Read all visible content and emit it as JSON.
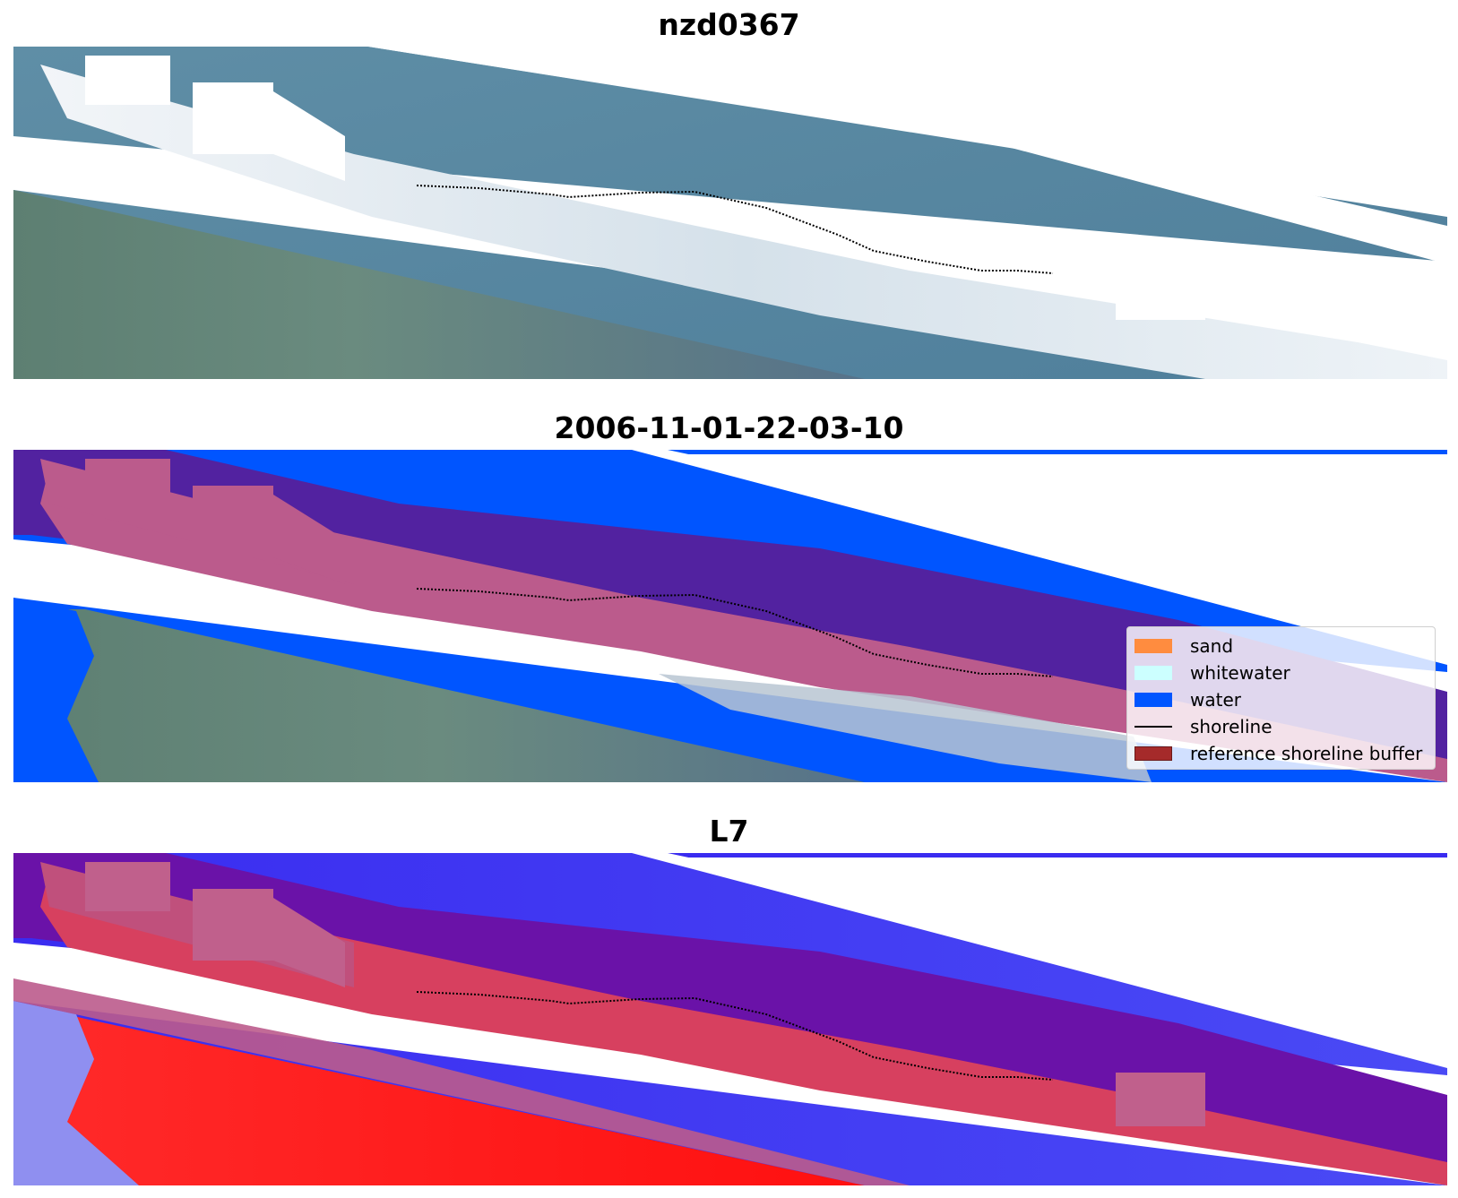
{
  "panels": [
    {
      "title": "nzd0367"
    },
    {
      "title": "2006-11-01-22-03-10"
    },
    {
      "title": "L7"
    }
  ],
  "legend": {
    "items": [
      {
        "label": "sand",
        "color": "#ff8c3f"
      },
      {
        "label": "whitewater",
        "color": "#ccffff"
      },
      {
        "label": "water",
        "color": "#0055ff"
      },
      {
        "label": "shoreline",
        "color": "#000000"
      },
      {
        "label": "reference shoreline buffer",
        "color": "#a52a2a"
      }
    ]
  }
}
